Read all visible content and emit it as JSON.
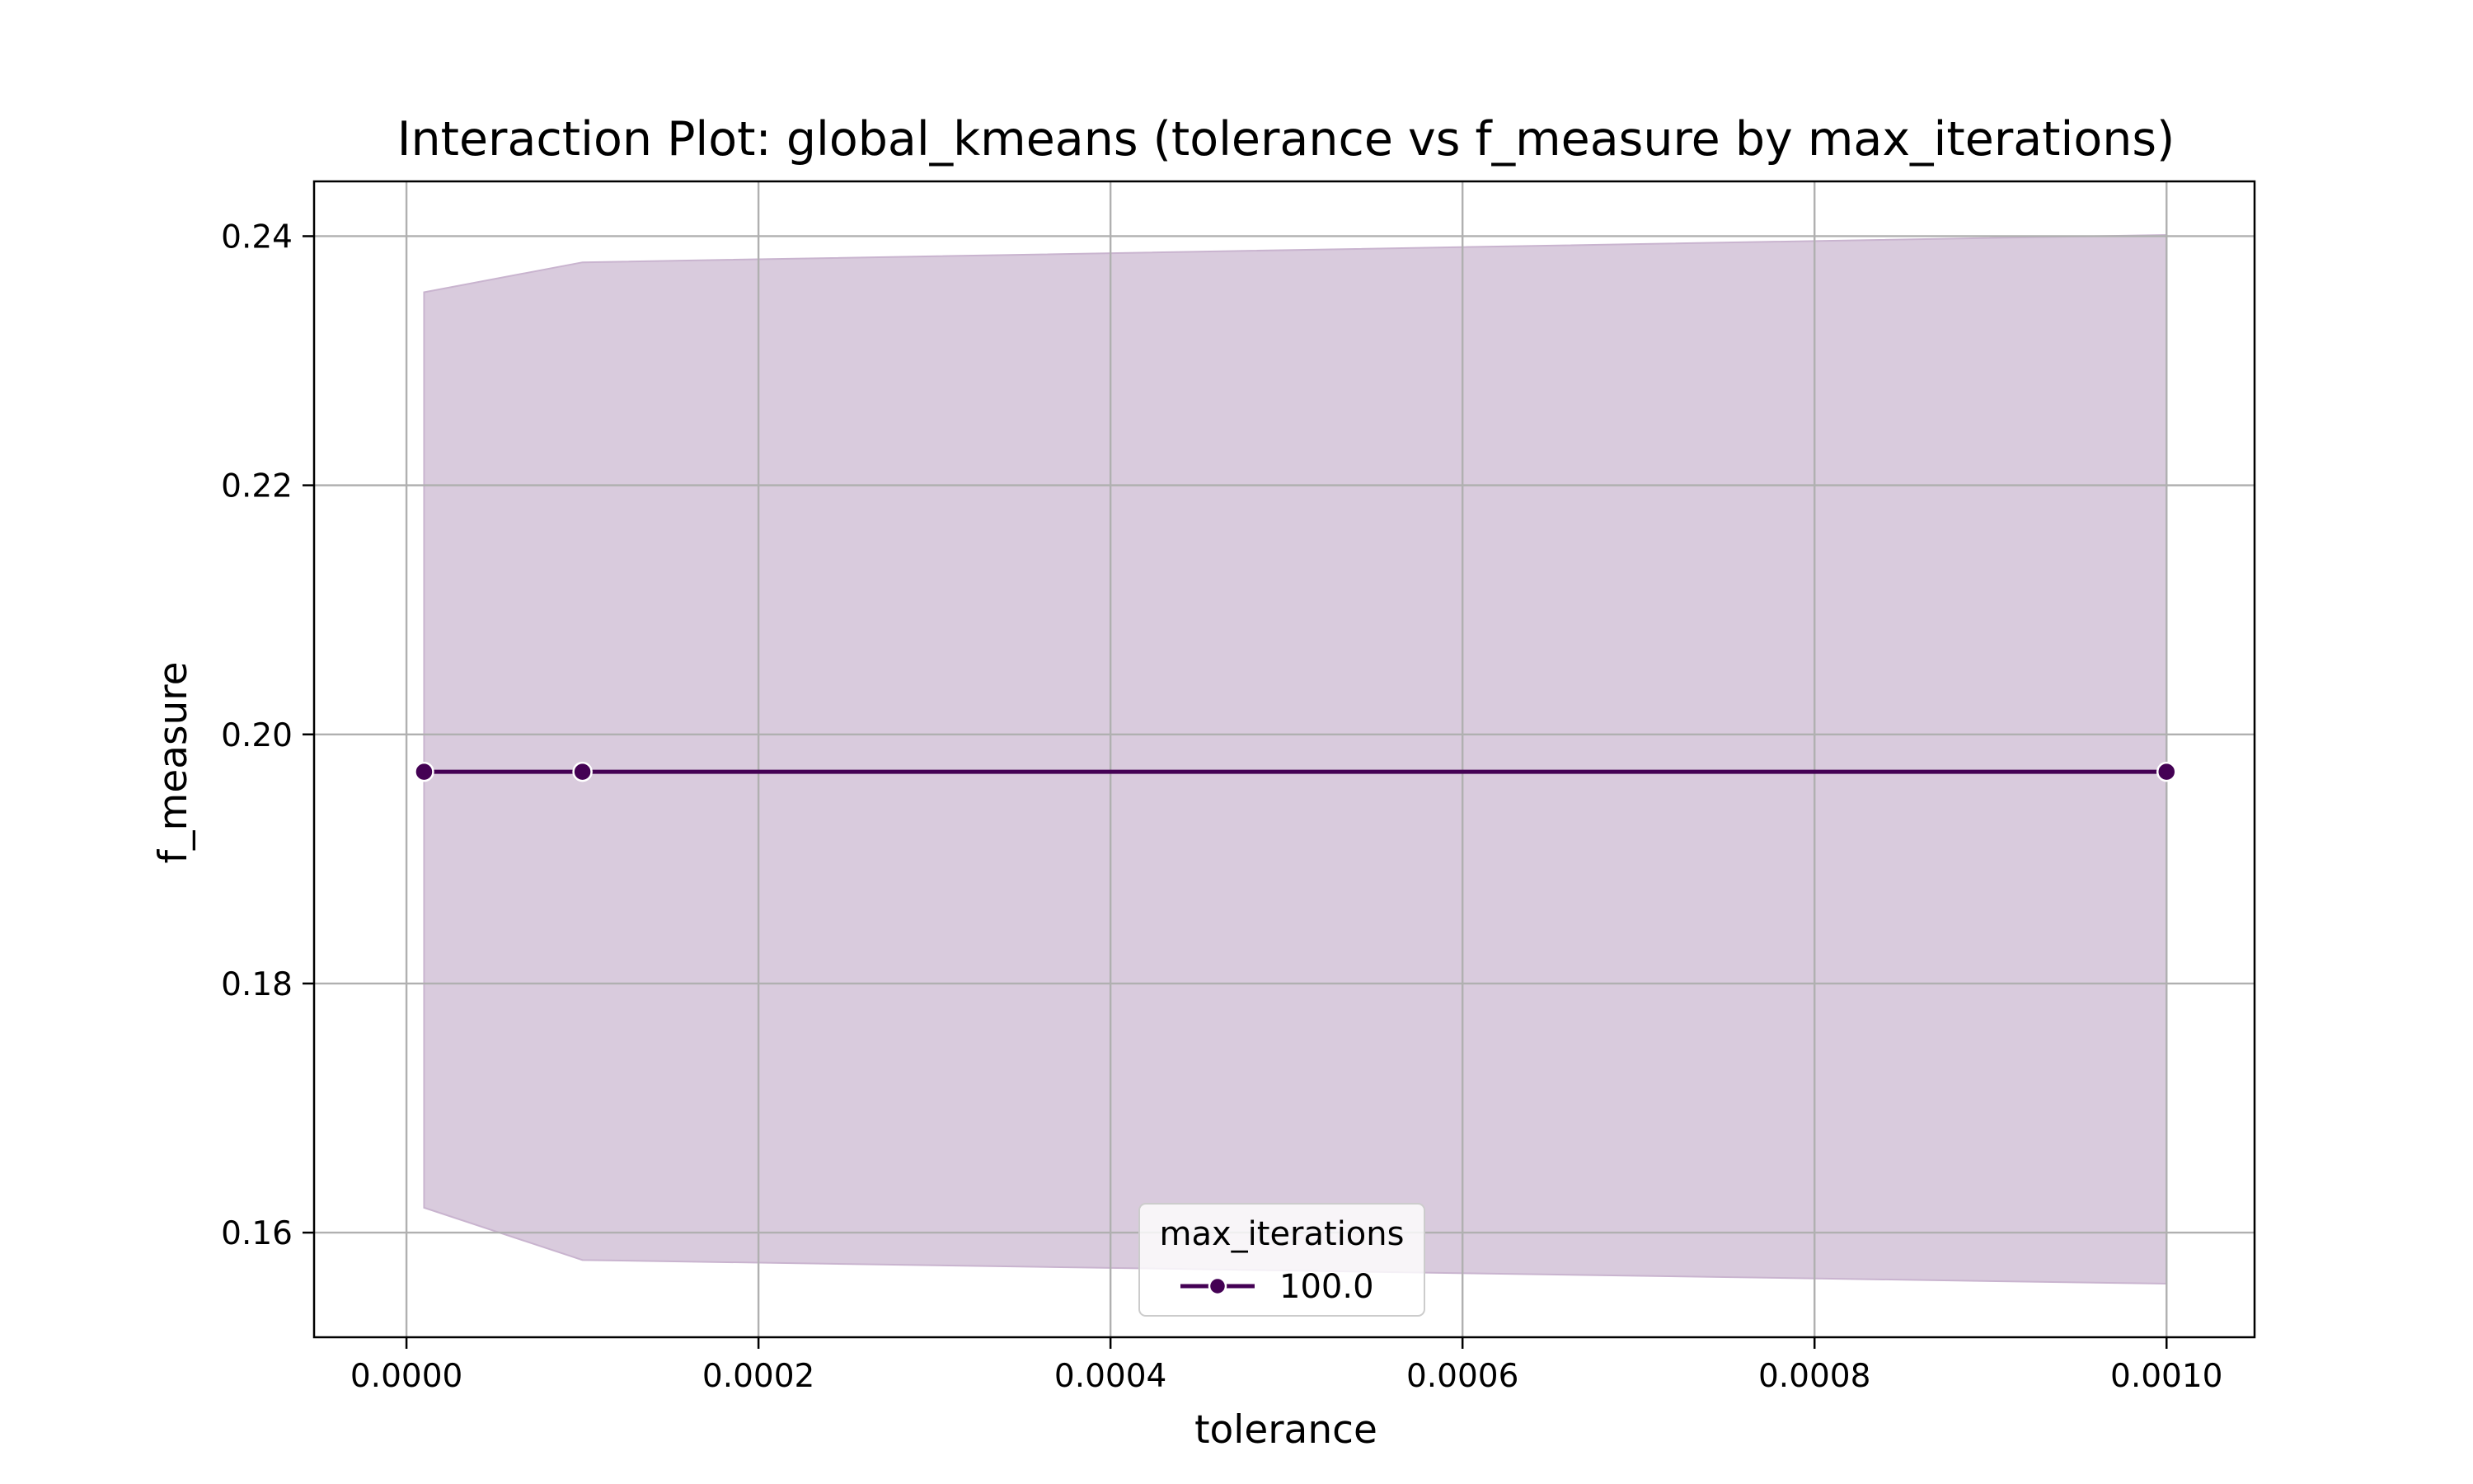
{
  "chart_data": {
    "type": "line",
    "title": "Interaction Plot: global_kmeans (tolerance vs f_measure by max_iterations)",
    "xlabel": "tolerance",
    "ylabel": "f_measure",
    "xlim": [
      -5.25e-05,
      0.00105
    ],
    "ylim": [
      0.1516,
      0.2444
    ],
    "xticks": [
      0.0,
      0.0002,
      0.0004,
      0.0006,
      0.0008,
      0.001
    ],
    "xtick_labels": [
      "0.0000",
      "0.0002",
      "0.0004",
      "0.0006",
      "0.0008",
      "0.0010"
    ],
    "yticks": [
      0.16,
      0.18,
      0.2,
      0.22,
      0.24
    ],
    "ytick_labels": [
      "0.16",
      "0.18",
      "0.20",
      "0.22",
      "0.24"
    ],
    "grid": true,
    "legend": {
      "title": "max_iterations",
      "placement": "lower-center"
    },
    "series": [
      {
        "name": "100.0",
        "color": "#440154",
        "band_color": "#d9cbdd",
        "x": [
          1e-05,
          0.0001,
          0.001
        ],
        "y": [
          0.197,
          0.197,
          0.197
        ],
        "ci_upper": [
          0.2355,
          0.2379,
          0.2401
        ],
        "ci_lower": [
          0.162,
          0.1578,
          0.1559
        ]
      }
    ]
  }
}
